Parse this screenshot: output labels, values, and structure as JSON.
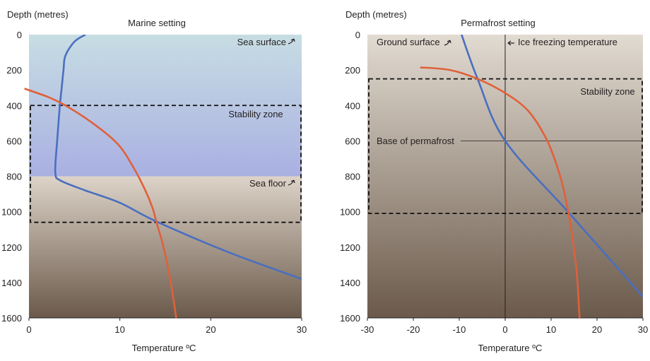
{
  "colors": {
    "temperature_profile": "#4a6fbf",
    "stability_curve": "#e0603a",
    "stability_zone_border": "#111111",
    "sea_top": "#c7dde3",
    "sea_bottom": "#a9b0e2",
    "sediment_top": "#ddd3c8",
    "sediment_bottom": "#6b5a4b",
    "permafrost_top": "#e2dbd2",
    "permafrost_bottom": "#6b5a4b"
  },
  "chart_data": [
    {
      "type": "line",
      "title": "Marine setting",
      "ylabel": "Depth (metres)",
      "xlabel": "Temperature ºC",
      "xlim": [
        0,
        30
      ],
      "ylim": [
        0,
        1600
      ],
      "y_inverted": true,
      "x_ticks": [
        "0",
        "10",
        "20",
        "30"
      ],
      "y_ticks": [
        "0",
        "200",
        "400",
        "600",
        "800",
        "1000",
        "1200",
        "1400",
        "1600"
      ],
      "grid": false,
      "legend": "none",
      "background_zones": [
        {
          "label": "sea water",
          "from_depth": 0,
          "to_depth": 800
        },
        {
          "label": "sediment",
          "from_depth": 800,
          "to_depth": 1600
        }
      ],
      "stability_zone": {
        "label": "Stability zone",
        "from_depth": 400,
        "to_depth": 1060
      },
      "annotations": [
        {
          "text": "Sea surface",
          "depth": 0
        },
        {
          "text": "Sea floor",
          "depth": 800
        }
      ],
      "series": [
        {
          "role": "temperature profile",
          "color": "#4a6fbf",
          "points": [
            [
              6.2,
              0
            ],
            [
              5.0,
              40
            ],
            [
              4.0,
              120
            ],
            [
              3.8,
              200
            ],
            [
              3.6,
              300
            ],
            [
              3.4,
              400
            ],
            [
              3.1,
              600
            ],
            [
              2.9,
              780
            ],
            [
              3.5,
              825
            ],
            [
              6.2,
              880
            ],
            [
              10.0,
              950
            ],
            [
              14.0,
              1055
            ],
            [
              22.0,
              1230
            ],
            [
              30.0,
              1380
            ]
          ]
        },
        {
          "role": "hydrate stability curve",
          "color": "#e0603a",
          "points": [
            [
              -0.5,
              305
            ],
            [
              2.0,
              350
            ],
            [
              4.0,
              400
            ],
            [
              7.0,
              500
            ],
            [
              9.8,
              620
            ],
            [
              11.6,
              760
            ],
            [
              12.8,
              880
            ],
            [
              13.6,
              980
            ],
            [
              14.0,
              1055
            ],
            [
              14.8,
              1200
            ],
            [
              15.6,
              1400
            ],
            [
              16.2,
              1600
            ]
          ]
        }
      ]
    },
    {
      "type": "line",
      "title": "Permafrost setting",
      "ylabel": "Depth (metres)",
      "xlabel": "Temperature ºC",
      "xlim": [
        -30,
        30
      ],
      "ylim": [
        0,
        1600
      ],
      "y_inverted": true,
      "x_ticks": [
        "-30",
        "-20",
        "-10",
        "0",
        "10",
        "20",
        "30"
      ],
      "y_ticks": [
        "0",
        "200",
        "400",
        "600",
        "800",
        "1000",
        "1200",
        "1400",
        "1600"
      ],
      "grid": false,
      "legend": "none",
      "stability_zone": {
        "label": "Stability zone",
        "from_depth": 250,
        "to_depth": 1010
      },
      "reference_lines": [
        {
          "orientation": "vertical",
          "at_temperature": 0,
          "text": "Ice freezing temperature"
        },
        {
          "orientation": "horizontal",
          "at_depth": 600,
          "text": "Base of permafrost"
        }
      ],
      "annotations": [
        {
          "text": "Ground surface",
          "depth": 0
        }
      ],
      "series": [
        {
          "role": "temperature profile",
          "color": "#4a6fbf",
          "points": [
            [
              -9.5,
              0
            ],
            [
              -6.0,
              250
            ],
            [
              0.0,
              600
            ],
            [
              14.0,
              1010
            ],
            [
              30.0,
              1480
            ]
          ]
        },
        {
          "role": "hydrate stability curve",
          "color": "#e0603a",
          "points": [
            [
              -18.5,
              185
            ],
            [
              -12.0,
              200
            ],
            [
              -6.0,
              250
            ],
            [
              0.0,
              330
            ],
            [
              5.0,
              430
            ],
            [
              8.8,
              580
            ],
            [
              11.0,
              720
            ],
            [
              12.6,
              860
            ],
            [
              13.8,
              1010
            ],
            [
              14.6,
              1140
            ],
            [
              15.6,
              1350
            ],
            [
              16.2,
              1600
            ]
          ]
        }
      ]
    }
  ]
}
